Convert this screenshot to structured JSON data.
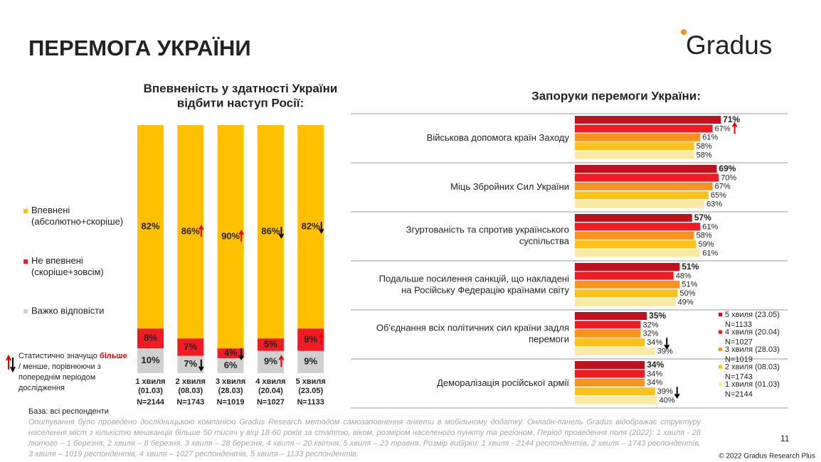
{
  "header": {
    "title": "ПЕРЕМОГА УКРАЇНИ",
    "logo": "Gradus"
  },
  "chart_data": [
    {
      "type": "stacked_bar",
      "title": "Впевненість у здатності України\nвідбити наступ Росії:",
      "categories": [
        "1 хвиля\n(01.03)",
        "2 хвиля\n(08.03)",
        "3 хвиля\n(28.03)",
        "4 хвиля\n(20.04)",
        "5 хвиля\n(23.05)"
      ],
      "sample_sizes": [
        "N=2144",
        "N=1743",
        "N=1019",
        "N=1027",
        "N=1133"
      ],
      "ylim": [
        0,
        100
      ],
      "series": [
        {
          "name": "Впевнені\n(абсолютно+скоріше)",
          "color": "#ffc000",
          "label_color": "#222",
          "values": [
            82,
            86,
            90,
            86,
            82
          ],
          "value_labels": [
            "82%",
            "86%",
            "90%",
            "86%",
            "82%"
          ],
          "trend": [
            null,
            "up",
            "up",
            "down",
            "down"
          ]
        },
        {
          "name": "Не впевнені\n(скоріше+зовсім)",
          "color": "#ee1c25",
          "label_color": "#ffffff",
          "values": [
            8,
            7,
            4,
            5,
            9
          ],
          "value_labels": [
            "8%",
            "7%",
            "4%",
            "5%",
            "9%"
          ],
          "trend": [
            null,
            null,
            "down",
            null,
            "up"
          ]
        },
        {
          "name": "Важко відповісти",
          "color": "#d0d0d0",
          "label_color": "#222",
          "values": [
            10,
            7,
            6,
            9,
            9
          ],
          "value_labels": [
            "10%",
            "7%",
            "6%",
            "9%",
            "9%"
          ],
          "trend": [
            null,
            "down",
            null,
            "up",
            null
          ]
        }
      ]
    },
    {
      "type": "grouped_hbar",
      "title": "Запоруки перемоги України:",
      "categories": [
        "Військова допомога країн Заходу",
        "Міць Збройних Сил України",
        "Згуртованість та спротив українського\nсуспільства",
        "Подальше посилення санкцій, що накладені\nна Російську Федерацію країнами світу",
        "Об'єднання всіх політичних сил країни задля\nперемоги",
        "Деморалізація російської армії"
      ],
      "xlim": [
        0,
        100
      ],
      "series": [
        {
          "name": "5 хвиля (23.05)",
          "sample": "N=1133",
          "color": "#c0111f",
          "values": [
            71,
            69,
            57,
            51,
            35,
            34
          ],
          "value_labels": [
            "71%",
            "69%",
            "57%",
            "51%",
            "35%",
            "34%"
          ],
          "trend": [
            null,
            null,
            null,
            null,
            null,
            null
          ]
        },
        {
          "name": "4 хвиля (20.04)",
          "sample": "N=1027",
          "color": "#ee1c25",
          "values": [
            67,
            70,
            61,
            48,
            32,
            34
          ],
          "value_labels": [
            "67%",
            "70%",
            "61%",
            "48%",
            "32%",
            "34%"
          ],
          "trend": [
            "up",
            null,
            null,
            null,
            null,
            null
          ]
        },
        {
          "name": "3 хвиля (28.03)",
          "sample": "N=1019",
          "color": "#f7941d",
          "values": [
            61,
            67,
            58,
            51,
            32,
            34
          ],
          "value_labels": [
            "61%",
            "67%",
            "58%",
            "51%",
            "32%",
            "34%"
          ],
          "trend": [
            null,
            null,
            null,
            null,
            null,
            null
          ]
        },
        {
          "name": "2 хвиля (08.03)",
          "sample": "N=1743",
          "color": "#fcc21b",
          "values": [
            58,
            65,
            59,
            50,
            34,
            39
          ],
          "value_labels": [
            "58%",
            "65%",
            "59%",
            "50%",
            "34%",
            "39%"
          ],
          "trend": [
            null,
            null,
            null,
            null,
            "down",
            "down"
          ]
        },
        {
          "name": "1 хвиля (01.03)",
          "sample": "N=2144",
          "color": "#fde9a6",
          "values": [
            58,
            63,
            61,
            49,
            39,
            40
          ],
          "value_labels": [
            "58%",
            "63%",
            "61%",
            "49%",
            "39%",
            "40%"
          ],
          "trend": [
            null,
            null,
            null,
            null,
            null,
            null
          ]
        }
      ]
    }
  ],
  "note": {
    "before": "Статистично значущо ",
    "more": "більше",
    "after": " / менше, порівнюючи з попереднім періодом дослідження"
  },
  "footer": {
    "base": "База: всі респонденти",
    "methodology": "Опитування було проведено дослідницькою компанією Gradus Research методом самозаповнення анкети в мобільному додатку. Онлайн-панель Gradus відображає структуру населення міст з кількістю мешканців більше 50 тисяч у віці 18-60 років за статтю, віком, розміром населеного пункту та регіоном. Період проведення поля (2022): 1 хвиля - 28 лютого – 1 березня, 2 хвиля – 8 березня, 3 хвиля – 28 березня, 4 хвиля – 20 квітня, 5 хвиля – 23 травня. Розмір вибірки: 1 хвиля - 2144 респондентів, 2 хвиля – 1743 респондентів, 3 хвиля – 1019 респондентів, 4 хвиля – 1027 респондентів, 5 хвиля – 1133 респондентів.",
    "page": "11",
    "copyright": "© 2022 Gradus Research Plus"
  }
}
